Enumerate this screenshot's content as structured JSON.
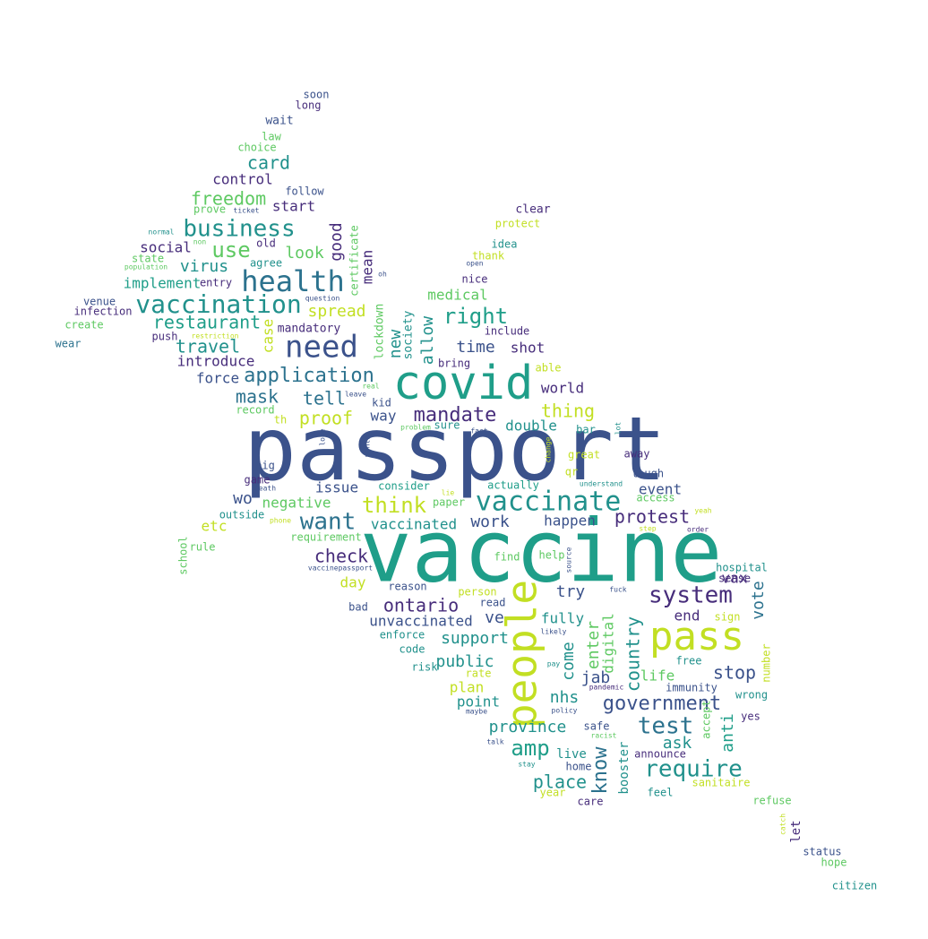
{
  "palette": {
    "blue": "#3b528b",
    "teal": "#21918c",
    "green": "#1f9e89",
    "lime": "#5ec962",
    "yellow": "#c2df23",
    "purple": "#472d7b",
    "dark": "#440154",
    "sea": "#2c728e"
  },
  "words": [
    {
      "t": "passport",
      "c": "blue"
    },
    {
      "t": "vaccine",
      "c": "green"
    },
    {
      "t": "covid",
      "c": "green"
    },
    {
      "t": "people",
      "c": "yellow"
    },
    {
      "t": "pass",
      "c": "yellow"
    },
    {
      "t": "health",
      "c": "sea"
    },
    {
      "t": "need",
      "c": "blue"
    },
    {
      "t": "vaccination",
      "c": "teal"
    },
    {
      "t": "vaccinate",
      "c": "teal"
    },
    {
      "t": "business",
      "c": "teal"
    },
    {
      "t": "want",
      "c": "sea"
    },
    {
      "t": "system",
      "c": "purple"
    },
    {
      "t": "application",
      "c": "sea"
    },
    {
      "t": "government",
      "c": "blue"
    },
    {
      "t": "require",
      "c": "teal"
    },
    {
      "t": "test",
      "c": "sea"
    },
    {
      "t": "right",
      "c": "green"
    },
    {
      "t": "think",
      "c": "yellow"
    },
    {
      "t": "mandate",
      "c": "purple"
    },
    {
      "t": "amp",
      "c": "green"
    },
    {
      "t": "use",
      "c": "lime"
    },
    {
      "t": "freedom",
      "c": "lime"
    },
    {
      "t": "restaurant",
      "c": "green"
    },
    {
      "t": "travel",
      "c": "teal"
    },
    {
      "t": "card",
      "c": "teal"
    },
    {
      "t": "mask",
      "c": "sea"
    },
    {
      "t": "proof",
      "c": "yellow"
    },
    {
      "t": "tell",
      "c": "sea"
    },
    {
      "t": "check",
      "c": "purple"
    },
    {
      "t": "ontario",
      "c": "purple"
    },
    {
      "t": "thing",
      "c": "yellow"
    },
    {
      "t": "protest",
      "c": "purple"
    },
    {
      "t": "know",
      "c": "sea"
    },
    {
      "t": "country",
      "c": "teal"
    },
    {
      "t": "place",
      "c": "teal"
    },
    {
      "t": "stop",
      "c": "blue"
    },
    {
      "t": "province",
      "c": "teal"
    },
    {
      "t": "virus",
      "c": "teal"
    },
    {
      "t": "implement",
      "c": "green"
    },
    {
      "t": "look",
      "c": "lime"
    },
    {
      "t": "spread",
      "c": "yellow"
    },
    {
      "t": "time",
      "c": "blue"
    },
    {
      "t": "good",
      "c": "purple"
    },
    {
      "t": "new",
      "c": "teal"
    },
    {
      "t": "allow",
      "c": "teal"
    },
    {
      "t": "shot",
      "c": "purple"
    },
    {
      "t": "world",
      "c": "purple"
    },
    {
      "t": "way",
      "c": "blue"
    },
    {
      "t": "double",
      "c": "teal"
    },
    {
      "t": "work",
      "c": "blue"
    },
    {
      "t": "happen",
      "c": "blue"
    },
    {
      "t": "negative",
      "c": "lime"
    },
    {
      "t": "vaccinated",
      "c": "teal"
    },
    {
      "t": "support",
      "c": "teal"
    },
    {
      "t": "public",
      "c": "teal"
    },
    {
      "t": "plan",
      "c": "yellow"
    },
    {
      "t": "point",
      "c": "teal"
    },
    {
      "t": "come",
      "c": "teal"
    },
    {
      "t": "enter",
      "c": "lime"
    },
    {
      "t": "digital",
      "c": "lime"
    },
    {
      "t": "jab",
      "c": "blue"
    },
    {
      "t": "life",
      "c": "lime"
    },
    {
      "t": "nhs",
      "c": "teal"
    },
    {
      "t": "ask",
      "c": "teal"
    },
    {
      "t": "try",
      "c": "blue"
    },
    {
      "t": "fully",
      "c": "teal"
    },
    {
      "t": "vote",
      "c": "sea"
    },
    {
      "t": "vax",
      "c": "purple"
    },
    {
      "t": "end",
      "c": "purple"
    },
    {
      "t": "anti",
      "c": "green"
    },
    {
      "t": "booster",
      "c": "teal"
    },
    {
      "t": "event",
      "c": "blue"
    },
    {
      "t": "ve",
      "c": "blue"
    },
    {
      "t": "unvaccinated",
      "c": "blue"
    },
    {
      "t": "wo",
      "c": "blue"
    },
    {
      "t": "etc",
      "c": "yellow"
    },
    {
      "t": "control",
      "c": "purple"
    },
    {
      "t": "start",
      "c": "purple"
    },
    {
      "t": "social",
      "c": "purple"
    },
    {
      "t": "introduce",
      "c": "purple"
    },
    {
      "t": "force",
      "c": "blue"
    },
    {
      "t": "medical",
      "c": "lime"
    },
    {
      "t": "day",
      "c": "yellow"
    },
    {
      "t": "issue",
      "c": "blue"
    },
    {
      "t": "mean",
      "c": "purple"
    },
    {
      "t": "case",
      "c": "yellow"
    },
    {
      "t": "lockdown",
      "c": "lime"
    },
    {
      "t": "society",
      "c": "teal"
    },
    {
      "t": "mandatory",
      "c": "purple"
    },
    {
      "t": "certificate",
      "c": "lime"
    },
    {
      "t": "soon",
      "c": "blue"
    },
    {
      "t": "long",
      "c": "purple"
    },
    {
      "t": "wait",
      "c": "blue"
    },
    {
      "t": "law",
      "c": "lime"
    },
    {
      "t": "choice",
      "c": "lime"
    },
    {
      "t": "follow",
      "c": "blue"
    },
    {
      "t": "prove",
      "c": "lime"
    },
    {
      "t": "ticket",
      "c": "blue"
    },
    {
      "t": "clear",
      "c": "purple"
    },
    {
      "t": "protect",
      "c": "yellow"
    },
    {
      "t": "idea",
      "c": "teal"
    },
    {
      "t": "thank",
      "c": "yellow"
    },
    {
      "t": "open",
      "c": "blue"
    },
    {
      "t": "normal",
      "c": "teal"
    },
    {
      "t": "non",
      "c": "lime"
    },
    {
      "t": "old",
      "c": "purple"
    },
    {
      "t": "state",
      "c": "lime"
    },
    {
      "t": "agree",
      "c": "teal"
    },
    {
      "t": "population",
      "c": "lime"
    },
    {
      "t": "entry",
      "c": "purple"
    },
    {
      "t": "oh",
      "c": "blue"
    },
    {
      "t": "nice",
      "c": "purple"
    },
    {
      "t": "venue",
      "c": "blue"
    },
    {
      "t": "infection",
      "c": "purple"
    },
    {
      "t": "question",
      "c": "blue"
    },
    {
      "t": "create",
      "c": "lime"
    },
    {
      "t": "push",
      "c": "purple"
    },
    {
      "t": "restriction",
      "c": "yellow"
    },
    {
      "t": "include",
      "c": "purple"
    },
    {
      "t": "wear",
      "c": "sea"
    },
    {
      "t": "bring",
      "c": "purple"
    },
    {
      "t": "able",
      "c": "yellow"
    },
    {
      "t": "real",
      "c": "lime"
    },
    {
      "t": "leave",
      "c": "blue"
    },
    {
      "t": "kid",
      "c": "blue"
    },
    {
      "t": "record",
      "c": "lime"
    },
    {
      "t": "th",
      "c": "yellow"
    },
    {
      "t": "problem",
      "c": "lime"
    },
    {
      "t": "sure",
      "c": "teal"
    },
    {
      "t": "fact",
      "c": "blue"
    },
    {
      "t": "bar",
      "c": "teal"
    },
    {
      "t": "lot",
      "c": "teal"
    },
    {
      "t": "lose",
      "c": "blue"
    },
    {
      "t": "month",
      "c": "blue"
    },
    {
      "t": "change",
      "c": "yellow"
    },
    {
      "t": "great",
      "c": "yellow"
    },
    {
      "t": "away",
      "c": "purple"
    },
    {
      "t": "big",
      "c": "blue"
    },
    {
      "t": "qr",
      "c": "yellow"
    },
    {
      "t": "laugh",
      "c": "blue"
    },
    {
      "t": "game",
      "c": "purple"
    },
    {
      "t": "death",
      "c": "blue"
    },
    {
      "t": "consider",
      "c": "green"
    },
    {
      "t": "actually",
      "c": "green"
    },
    {
      "t": "understand",
      "c": "teal"
    },
    {
      "t": "access",
      "c": "lime"
    },
    {
      "t": "lie",
      "c": "yellow"
    },
    {
      "t": "paper",
      "c": "lime"
    },
    {
      "t": "outside",
      "c": "teal"
    },
    {
      "t": "phone",
      "c": "yellow"
    },
    {
      "t": "yeah",
      "c": "yellow"
    },
    {
      "t": "requirement",
      "c": "lime"
    },
    {
      "t": "step",
      "c": "yellow"
    },
    {
      "t": "order",
      "c": "purple"
    },
    {
      "t": "school",
      "c": "lime"
    },
    {
      "t": "rule",
      "c": "lime"
    },
    {
      "t": "find",
      "c": "lime"
    },
    {
      "t": "help",
      "c": "lime"
    },
    {
      "t": "source",
      "c": "blue"
    },
    {
      "t": "hospital",
      "c": "teal"
    },
    {
      "t": "vaccinepassport",
      "c": "blue"
    },
    {
      "t": "sense",
      "c": "purple"
    },
    {
      "t": "reason",
      "c": "blue"
    },
    {
      "t": "fuck",
      "c": "blue"
    },
    {
      "t": "person",
      "c": "yellow"
    },
    {
      "t": "read",
      "c": "blue"
    },
    {
      "t": "bad",
      "c": "blue"
    },
    {
      "t": "sign",
      "c": "yellow"
    },
    {
      "t": "likely",
      "c": "blue"
    },
    {
      "t": "enforce",
      "c": "teal"
    },
    {
      "t": "code",
      "c": "teal"
    },
    {
      "t": "free",
      "c": "teal"
    },
    {
      "t": "pay",
      "c": "teal"
    },
    {
      "t": "risk",
      "c": "teal"
    },
    {
      "t": "number",
      "c": "yellow"
    },
    {
      "t": "rate",
      "c": "yellow"
    },
    {
      "t": "pandemic",
      "c": "purple"
    },
    {
      "t": "immunity",
      "c": "blue"
    },
    {
      "t": "wrong",
      "c": "teal"
    },
    {
      "t": "maybe",
      "c": "blue"
    },
    {
      "t": "policy",
      "c": "blue"
    },
    {
      "t": "accept",
      "c": "lime"
    },
    {
      "t": "yes",
      "c": "purple"
    },
    {
      "t": "safe",
      "c": "blue"
    },
    {
      "t": "racist",
      "c": "lime"
    },
    {
      "t": "talk",
      "c": "blue"
    },
    {
      "t": "live",
      "c": "teal"
    },
    {
      "t": "announce",
      "c": "purple"
    },
    {
      "t": "home",
      "c": "blue"
    },
    {
      "t": "stay",
      "c": "teal"
    },
    {
      "t": "sanitaire",
      "c": "yellow"
    },
    {
      "t": "year",
      "c": "yellow"
    },
    {
      "t": "care",
      "c": "purple"
    },
    {
      "t": "feel",
      "c": "teal"
    },
    {
      "t": "refuse",
      "c": "lime"
    },
    {
      "t": "catch",
      "c": "yellow"
    },
    {
      "t": "let",
      "c": "purple"
    },
    {
      "t": "status",
      "c": "blue"
    },
    {
      "t": "hope",
      "c": "lime"
    },
    {
      "t": "citizen",
      "c": "teal"
    }
  ]
}
